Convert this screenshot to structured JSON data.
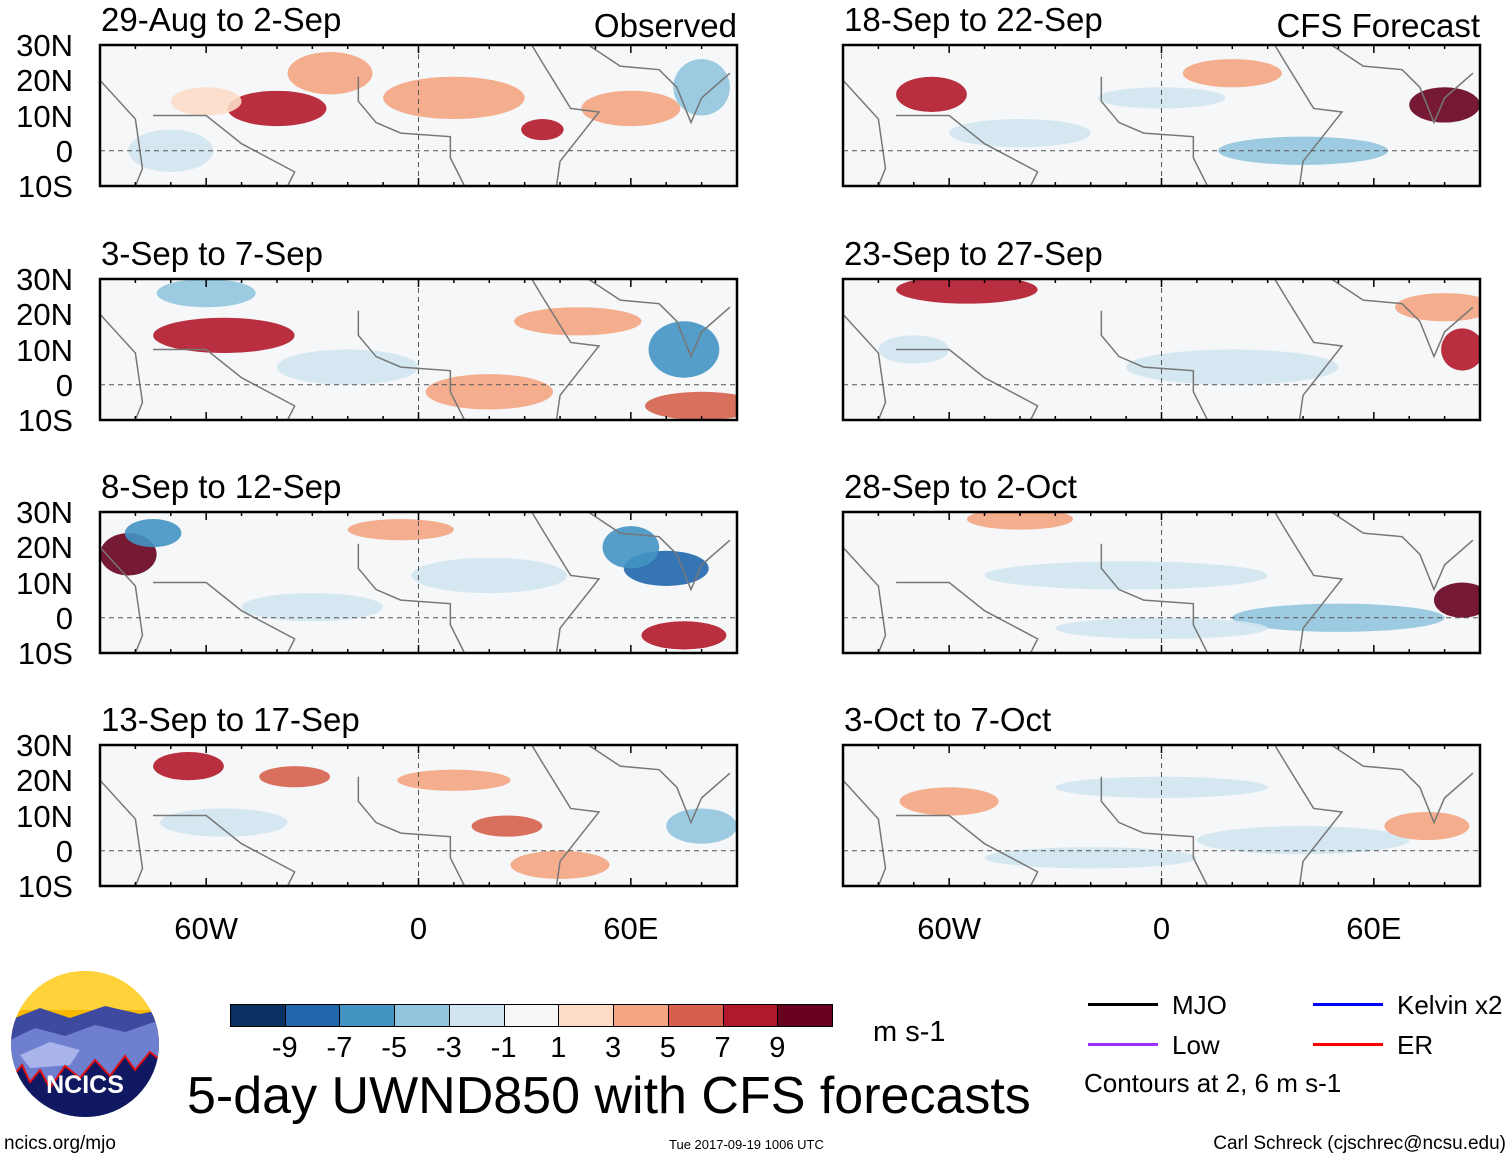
{
  "chart_data": {
    "type": "heatmap",
    "title": "5-day UWND850 with CFS forecasts",
    "variable": "850-hPa zonal wind anomaly",
    "units": "m s-1",
    "column_labels": {
      "left": "Observed",
      "right": "CFS Forecast"
    },
    "lat_ticks": [
      "30N",
      "20N",
      "10N",
      "0",
      "10S"
    ],
    "lon_ticks": [
      "60W",
      "0",
      "60E"
    ],
    "lat_range": [
      -10,
      30
    ],
    "lon_range": [
      -90,
      90
    ],
    "panels": [
      {
        "title": "29-Aug to 2-Sep",
        "column": "left",
        "source": "Observed"
      },
      {
        "title": "3-Sep to 7-Sep",
        "column": "left",
        "source": "Observed"
      },
      {
        "title": "8-Sep to 12-Sep",
        "column": "left",
        "source": "Observed"
      },
      {
        "title": "13-Sep to 17-Sep",
        "column": "left",
        "source": "Observed"
      },
      {
        "title": "18-Sep to 22-Sep",
        "column": "right",
        "source": "CFS Forecast"
      },
      {
        "title": "23-Sep to 27-Sep",
        "column": "right",
        "source": "CFS Forecast"
      },
      {
        "title": "28-Sep to 2-Oct",
        "column": "right",
        "source": "CFS Forecast"
      },
      {
        "title": "3-Oct to 7-Oct",
        "column": "right",
        "source": "CFS Forecast"
      }
    ],
    "colorbar": {
      "labels": [
        "-9",
        "-7",
        "-5",
        "-3",
        "-1",
        "1",
        "3",
        "5",
        "7",
        "9"
      ],
      "colors": [
        "#0a3161",
        "#2166ac",
        "#4393c3",
        "#92c5de",
        "#d1e5f0",
        "#f7f7f7",
        "#fddbc7",
        "#f4a582",
        "#d6604d",
        "#b2182b",
        "#67001f"
      ],
      "units": "m s-1"
    },
    "legend": [
      {
        "label": "MJO",
        "color": "#000000"
      },
      {
        "label": "Kelvin x2",
        "color": "#0000ff"
      },
      {
        "label": "Low",
        "color": "#9b30ff"
      },
      {
        "label": "ER",
        "color": "#ff0000"
      }
    ],
    "contour_note": "Contours at 2, 6 m s-1"
  },
  "logo": {
    "text": "NCICS"
  },
  "footer": {
    "url": "ncics.org/mjo",
    "timestamp": "Tue 2017-09-19 1006 UTC",
    "author": "Carl Schreck (cjschrec@ncsu.edu)"
  }
}
